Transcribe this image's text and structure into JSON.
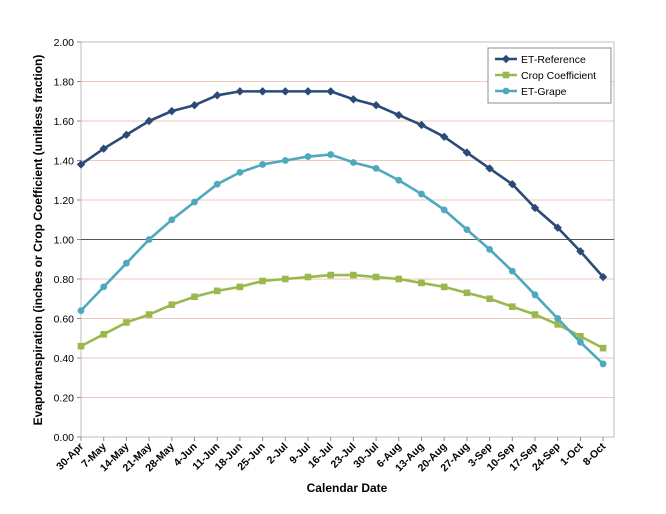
{
  "chart_data": {
    "type": "line",
    "title": "",
    "xlabel": "Calendar Date",
    "ylabel": "Evapotranspiration (inches or Crop Coefficient (unitless fraction)",
    "ylim": [
      0,
      2
    ],
    "yticks": [
      "0.00",
      "0.20",
      "0.40",
      "0.60",
      "0.80",
      "1.00",
      "1.20",
      "1.40",
      "1.60",
      "1.80",
      "2.00"
    ],
    "grid": true,
    "legend": "top-right",
    "categories": [
      "30-Apr",
      "7-May",
      "14-May",
      "21-May",
      "28-May",
      "4-Jun",
      "11-Jun",
      "18-Jun",
      "25-Jun",
      "2-Jul",
      "9-Jul",
      "16-Jul",
      "23-Jul",
      "30-Jul",
      "6-Aug",
      "13-Aug",
      "20-Aug",
      "27-Aug",
      "3-Sep",
      "10-Sep",
      "17-Sep",
      "24-Sep",
      "1-Oct",
      "8-Oct"
    ],
    "series": [
      {
        "name": "ET-Reference",
        "color": "#2b4a78",
        "marker": "diamond",
        "values": [
          1.38,
          1.46,
          1.53,
          1.6,
          1.65,
          1.68,
          1.73,
          1.75,
          1.75,
          1.75,
          1.75,
          1.75,
          1.71,
          1.68,
          1.63,
          1.58,
          1.52,
          1.44,
          1.36,
          1.28,
          1.16,
          1.06,
          0.94,
          0.81
        ]
      },
      {
        "name": "Crop Coefficient",
        "color": "#9ab84e",
        "marker": "square",
        "values": [
          0.46,
          0.52,
          0.58,
          0.62,
          0.67,
          0.71,
          0.74,
          0.76,
          0.79,
          0.8,
          0.81,
          0.82,
          0.82,
          0.81,
          0.8,
          0.78,
          0.76,
          0.73,
          0.7,
          0.66,
          0.62,
          0.57,
          0.51,
          0.45
        ]
      },
      {
        "name": "ET-Grape",
        "color": "#4fa8bd",
        "marker": "circle",
        "values": [
          0.64,
          0.76,
          0.88,
          1.0,
          1.1,
          1.19,
          1.28,
          1.34,
          1.38,
          1.4,
          1.42,
          1.43,
          1.39,
          1.36,
          1.3,
          1.23,
          1.15,
          1.05,
          0.95,
          0.84,
          0.72,
          0.6,
          0.48,
          0.37
        ]
      }
    ]
  }
}
